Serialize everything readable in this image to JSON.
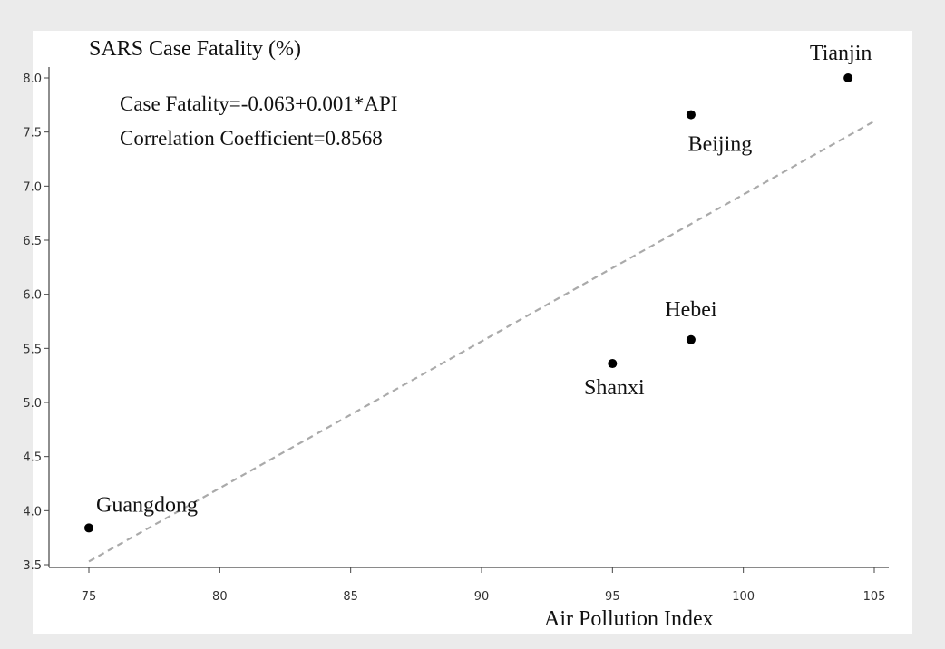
{
  "chart_data": {
    "type": "scatter",
    "ylabel": "SARS Case Fatality (%)",
    "xlabel": "Air Pollution Index",
    "xlim": [
      75,
      105
    ],
    "ylim": [
      3.5,
      8.0
    ],
    "x_ticks": [
      "75",
      "80",
      "85",
      "90",
      "95",
      "100",
      "105"
    ],
    "y_ticks": [
      "3.5",
      "4.0",
      "4.5",
      "5.0",
      "5.5",
      "6.0",
      "6.5",
      "7.0",
      "7.5",
      "8.0"
    ],
    "points": [
      {
        "label": "Guangdong",
        "x": 75,
        "y": 3.84
      },
      {
        "label": "Shanxi",
        "x": 95,
        "y": 5.36
      },
      {
        "label": "Hebei",
        "x": 98,
        "y": 5.58
      },
      {
        "label": "Beijing",
        "x": 98,
        "y": 7.66
      },
      {
        "label": "Tianjin",
        "x": 104,
        "y": 8.0
      }
    ],
    "regression": {
      "equation": "Case Fatality=-0.063+0.001*API",
      "correlation": "Correlation Coefficient=0.8568",
      "line": [
        {
          "x": 75,
          "y": 3.53
        },
        {
          "x": 105,
          "y": 7.6
        }
      ],
      "style": "dashed",
      "color": "#aaaaaa"
    },
    "grid": false,
    "legend": "none",
    "colors": {
      "points": "#000000",
      "axis": "#444444"
    }
  }
}
